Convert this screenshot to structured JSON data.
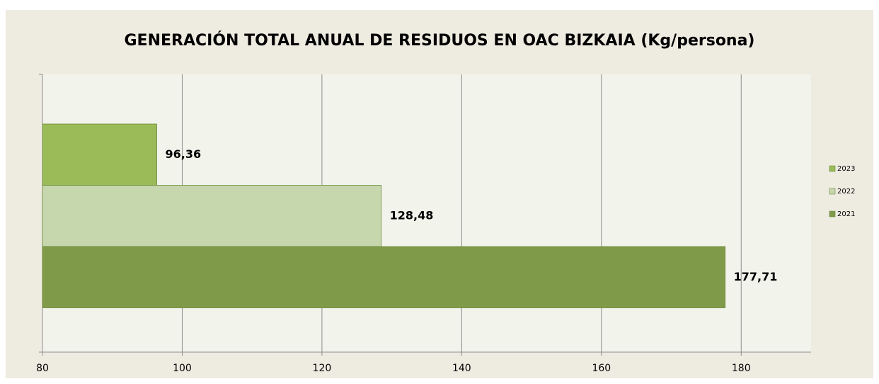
{
  "chart_data": {
    "type": "bar",
    "orientation": "horizontal",
    "title": "GENERACIÓN TOTAL ANUAL DE RESIDUOS EN OAC BIZKAIA (Kg/persona)",
    "series": [
      {
        "name": "2023",
        "color": "#9bbb59",
        "values": [
          96.36
        ],
        "value_labels": [
          "96,36"
        ]
      },
      {
        "name": "2022",
        "color": "#c6d7ae",
        "values": [
          128.48
        ],
        "value_labels": [
          "128,48"
        ]
      },
      {
        "name": "2021",
        "color": "#7f9a48",
        "values": [
          177.71
        ],
        "value_labels": [
          "177,71"
        ]
      }
    ],
    "xlim": [
      80,
      190
    ],
    "xticks": [
      80,
      100,
      120,
      140,
      160,
      180
    ],
    "grid": true,
    "legend": "right"
  }
}
